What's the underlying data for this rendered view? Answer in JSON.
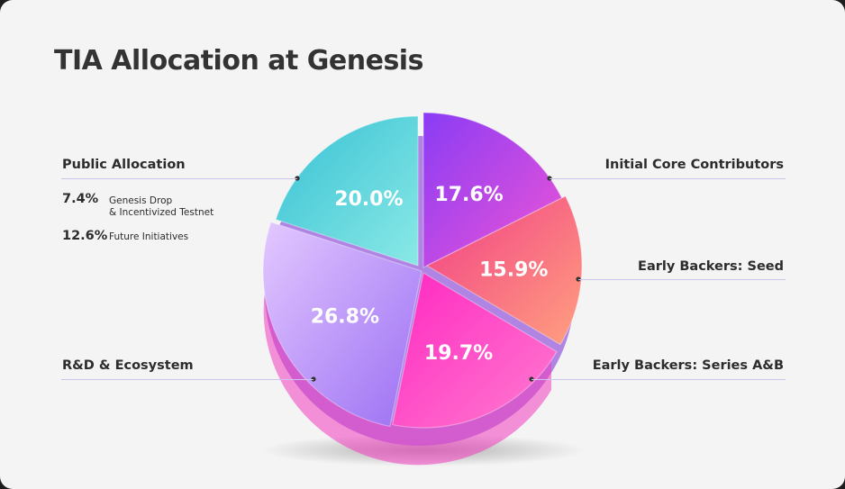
{
  "title": "TIA Allocation at Genesis",
  "chart_data": {
    "type": "pie",
    "title": "TIA Allocation at Genesis",
    "slices": [
      {
        "name": "Initial Core Contributors",
        "value": 17.6,
        "label": "17.6%",
        "color": "#c13ff0"
      },
      {
        "name": "Early Backers: Seed",
        "value": 15.9,
        "label": "15.9%",
        "color": "#f4567c"
      },
      {
        "name": "Early Backers: Series A&B",
        "value": 19.7,
        "label": "19.7%",
        "color": "#fb2ec4"
      },
      {
        "name": "R&D & Ecosystem",
        "value": 26.8,
        "label": "26.8%",
        "color": "#b98af7"
      },
      {
        "name": "Public Allocation",
        "value": 20.0,
        "label": "20.0%",
        "color": "#5fd2dc"
      }
    ],
    "public_allocation_breakdown": [
      {
        "pct": "7.4%",
        "label": "Genesis Drop & Incentivized Testnet"
      },
      {
        "pct": "12.6%",
        "label": "Future Initiatives"
      }
    ]
  },
  "legend": {
    "public_allocation": "Public Allocation",
    "breakdown": [
      {
        "pct": "7.4%",
        "line1": "Genesis Drop",
        "line2": "& Incentivized Testnet"
      },
      {
        "pct": "12.6%",
        "line1": "Future Initiatives"
      }
    ],
    "rd_ecosystem": "R&D & Ecosystem",
    "initial_core": "Initial Core Contributors",
    "seed": "Early Backers: Seed",
    "series_ab": "Early Backers: Series A&B"
  }
}
